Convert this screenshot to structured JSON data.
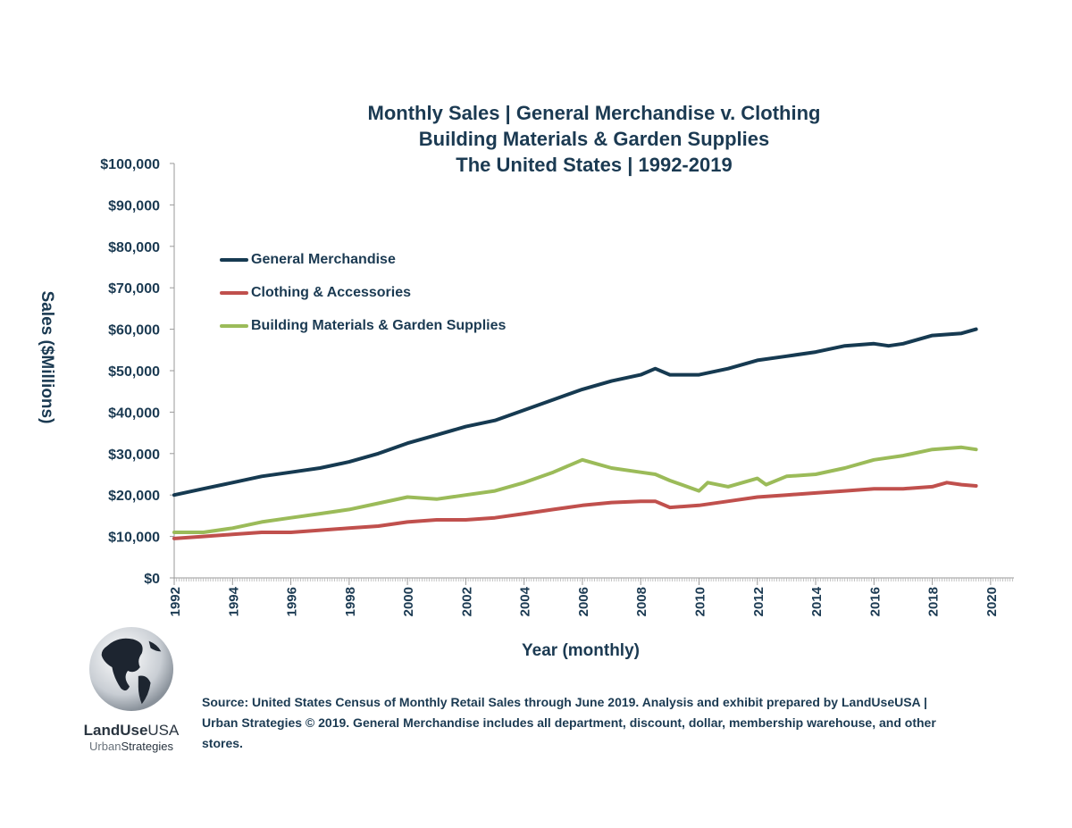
{
  "chart_data": {
    "type": "line",
    "title_lines": [
      "Monthly Sales | General Merchandise v. Clothing",
      "Building Materials & Garden Supplies",
      "The United States | 1992-2019"
    ],
    "xlabel": "Year (monthly)",
    "ylabel": "Sales ($Millions)",
    "ylim": [
      0,
      100000
    ],
    "xlim": [
      1992,
      2020.8
    ],
    "y_ticks": [
      "$0",
      "$10,000",
      "$20,000",
      "$30,000",
      "$40,000",
      "$50,000",
      "$60,000",
      "$70,000",
      "$80,000",
      "$90,000",
      "$100,000"
    ],
    "x_ticks": [
      "1992",
      "1994",
      "1996",
      "1998",
      "2000",
      "2002",
      "2004",
      "2006",
      "2008",
      "2010",
      "2012",
      "2014",
      "2016",
      "2018",
      "2020"
    ],
    "grid": false,
    "legend_position": "top-left",
    "series": [
      {
        "name": "General Merchandise",
        "color": "#163a51",
        "x": [
          1992,
          1993,
          1994,
          1995,
          1996,
          1997,
          1998,
          1999,
          2000,
          2001,
          2002,
          2003,
          2004,
          2005,
          2006,
          2007,
          2008,
          2008.5,
          2009,
          2010,
          2011,
          2012,
          2013,
          2014,
          2015,
          2016,
          2016.5,
          2017,
          2018,
          2019,
          2019.5
        ],
        "y": [
          20000,
          21500,
          23000,
          24500,
          25500,
          26500,
          28000,
          30000,
          32500,
          34500,
          36500,
          38000,
          40500,
          43000,
          45500,
          47500,
          49000,
          50500,
          49000,
          49000,
          50500,
          52500,
          53500,
          54500,
          56000,
          56500,
          56000,
          56500,
          58500,
          59000,
          60000
        ]
      },
      {
        "name": "Clothing & Accessories",
        "color": "#c0504d",
        "x": [
          1992,
          1993,
          1994,
          1995,
          1996,
          1997,
          1998,
          1999,
          2000,
          2001,
          2002,
          2003,
          2004,
          2005,
          2006,
          2007,
          2008,
          2008.5,
          2009,
          2010,
          2011,
          2012,
          2013,
          2014,
          2015,
          2016,
          2017,
          2018,
          2018.5,
          2019,
          2019.5
        ],
        "y": [
          9500,
          10000,
          10500,
          11000,
          11000,
          11500,
          12000,
          12500,
          13500,
          14000,
          14000,
          14500,
          15500,
          16500,
          17500,
          18200,
          18500,
          18500,
          17000,
          17500,
          18500,
          19500,
          20000,
          20500,
          21000,
          21500,
          21500,
          22000,
          23000,
          22500,
          22200
        ]
      },
      {
        "name": "Building Materials & Garden Supplies",
        "color": "#9bbb59",
        "x": [
          1992,
          1993,
          1994,
          1995,
          1996,
          1997,
          1998,
          1999,
          2000,
          2001,
          2002,
          2003,
          2004,
          2005,
          2006,
          2006.5,
          2007,
          2008,
          2008.5,
          2009,
          2010,
          2010.3,
          2011,
          2012,
          2012.3,
          2013,
          2014,
          2015,
          2016,
          2017,
          2018,
          2019,
          2019.5
        ],
        "y": [
          11000,
          11000,
          12000,
          13500,
          14500,
          15500,
          16500,
          18000,
          19500,
          19000,
          20000,
          21000,
          23000,
          25500,
          28500,
          27500,
          26500,
          25500,
          25000,
          23500,
          21000,
          23000,
          22000,
          24000,
          22500,
          24500,
          25000,
          26500,
          28500,
          29500,
          31000,
          31500,
          31000
        ]
      }
    ]
  },
  "source_text": "Source: United States Census of Monthly Retail Sales through June 2019. Analysis and exhibit prepared by LandUseUSA | Urban Strategies © 2019. General Merchandise includes all department, discount, dollar, membership warehouse, and other stores.",
  "logo": {
    "name_bold": "LandUse",
    "name_rest": "USA",
    "sub_light": "Urban",
    "sub_rest": "Strategies"
  }
}
